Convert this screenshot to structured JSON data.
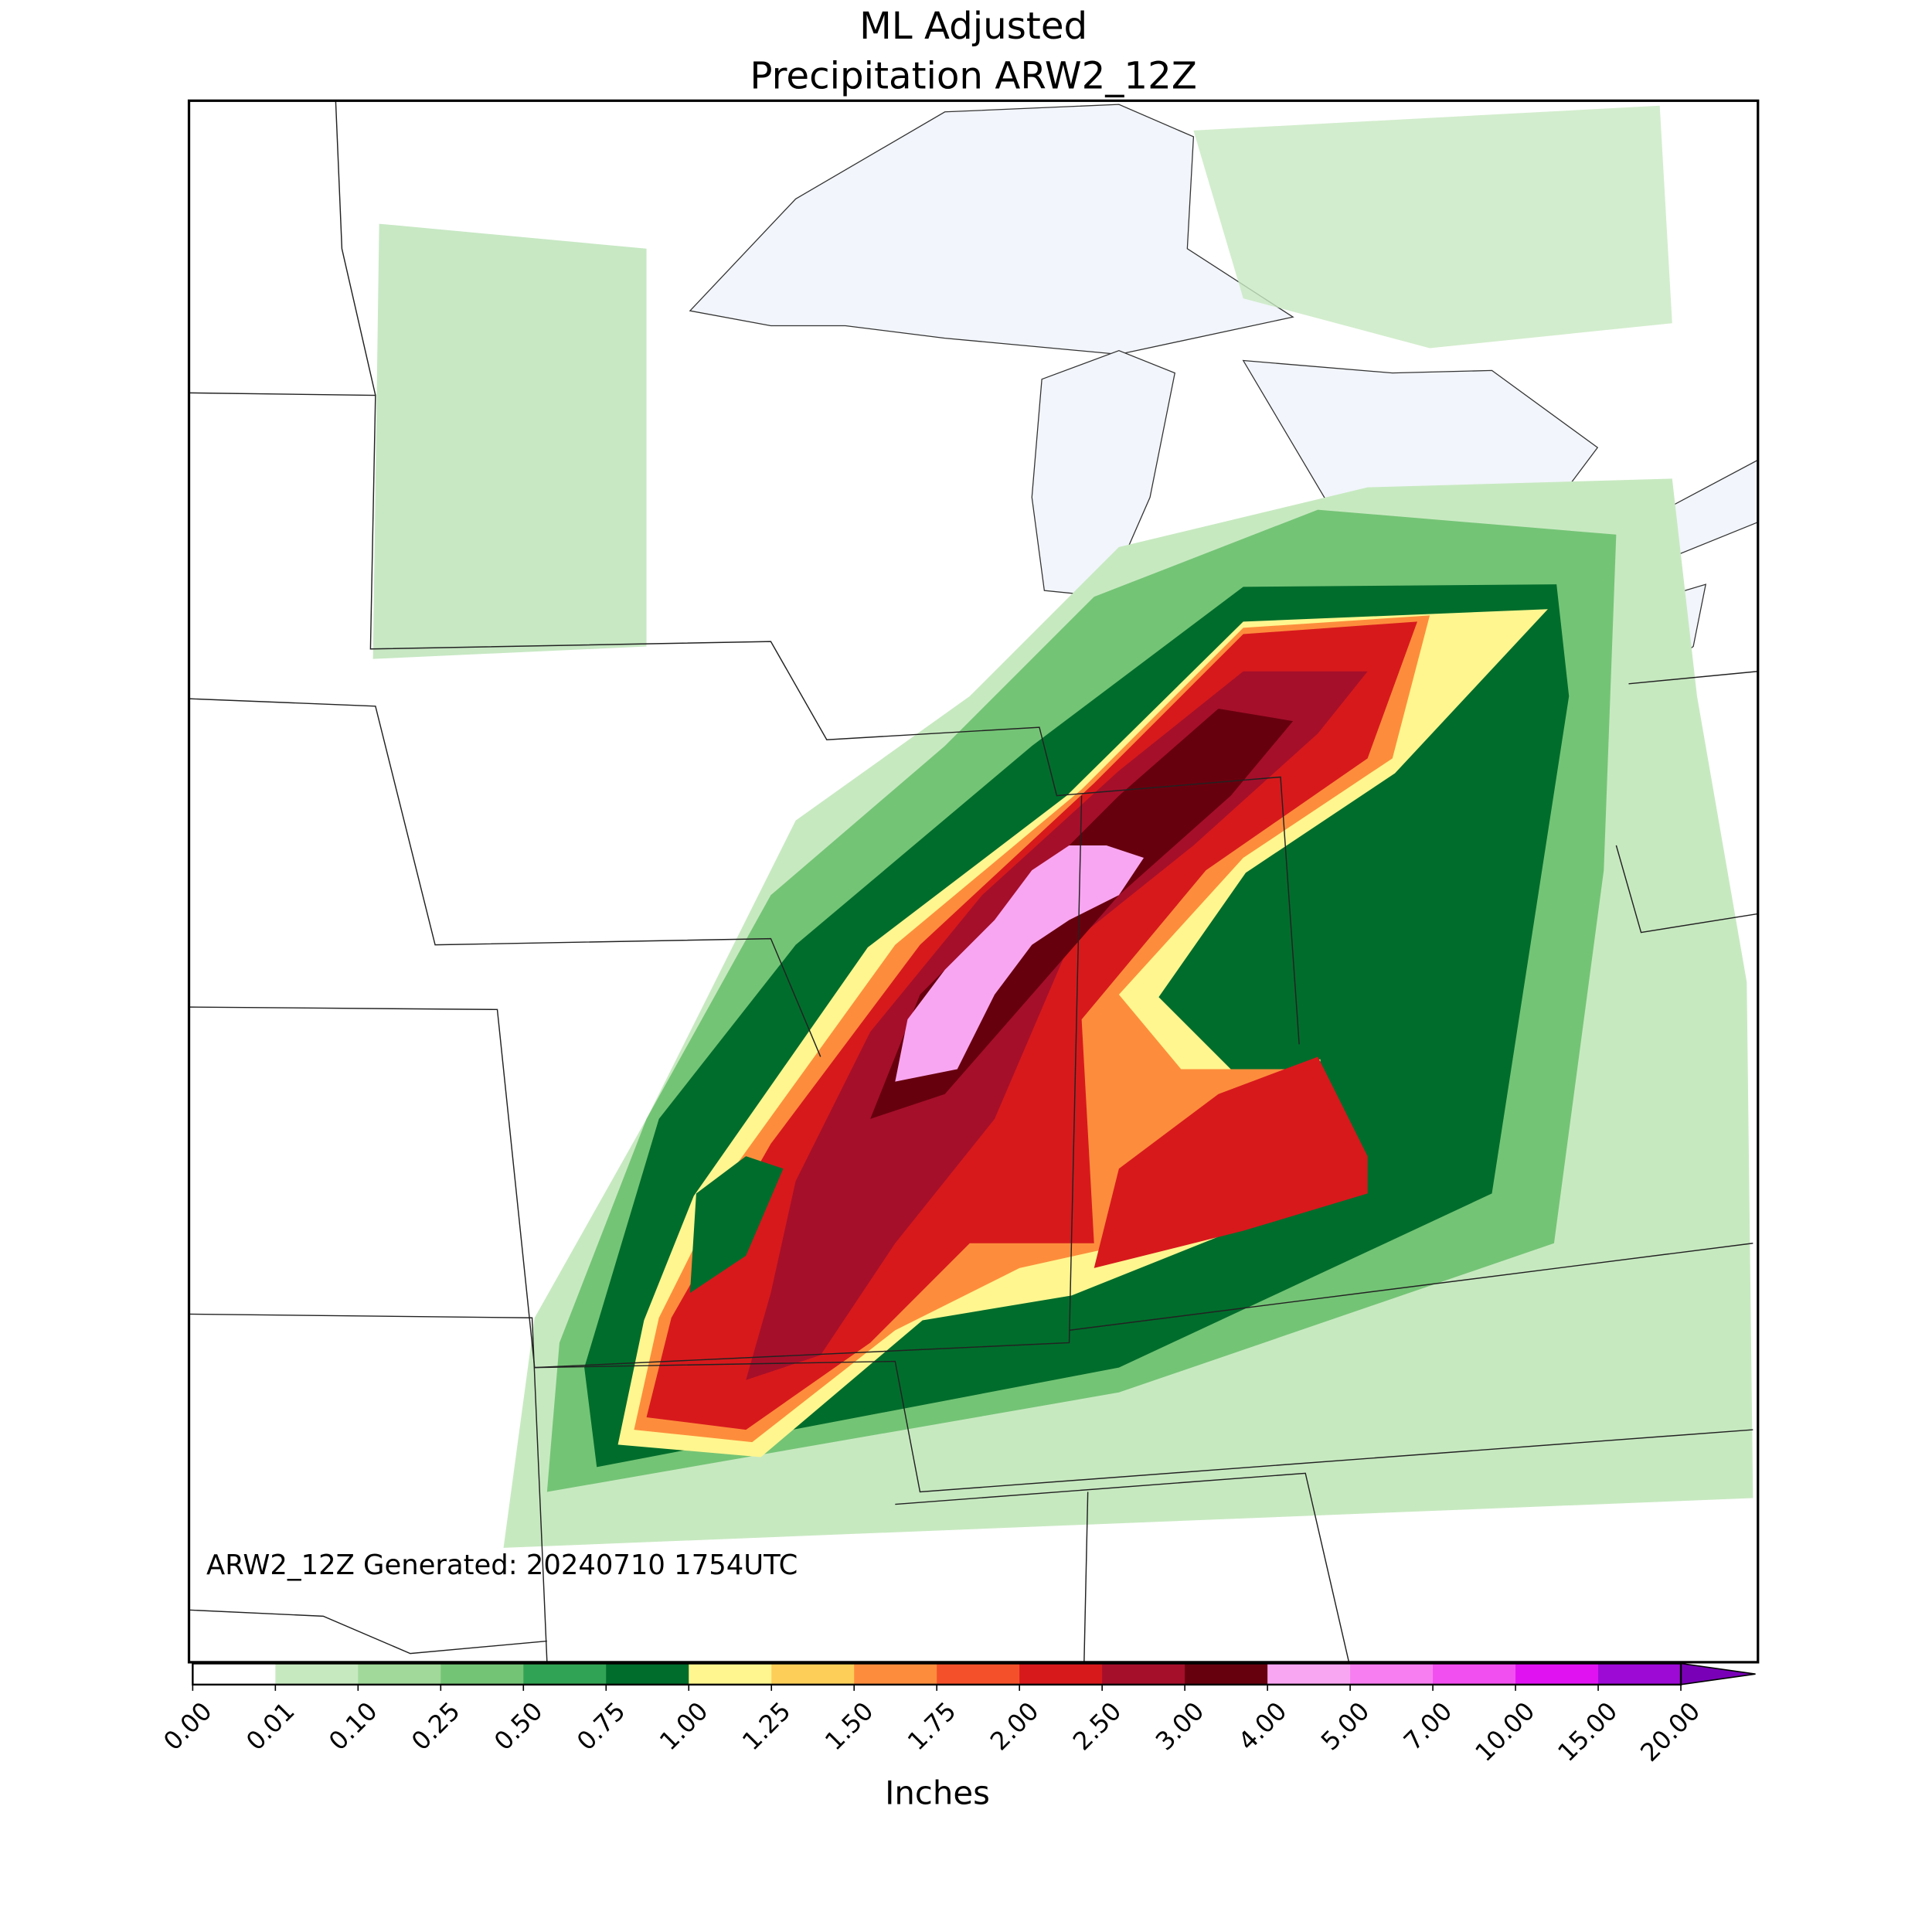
{
  "title": "ML Adjusted",
  "subtitle": "Precipitation ARW2_12Z",
  "annotation": "ARW2_12Z Generated: 20240710 1754UTC",
  "colorbar": {
    "label": "Inches",
    "ticks": [
      {
        "value": 0,
        "label": "0.00"
      },
      {
        "value": 0.01,
        "label": "0.01"
      },
      {
        "value": 0.1,
        "label": "0.10"
      },
      {
        "value": 0.25,
        "label": "0.25"
      },
      {
        "value": 0.5,
        "label": "0.50"
      },
      {
        "value": 0.75,
        "label": "0.75"
      },
      {
        "value": 1,
        "label": "1.00"
      },
      {
        "value": 1.25,
        "label": "1.25"
      },
      {
        "value": 1.5,
        "label": "1.50"
      },
      {
        "value": 1.75,
        "label": "1.75"
      },
      {
        "value": 2,
        "label": "2.00"
      },
      {
        "value": 2.5,
        "label": "2.50"
      },
      {
        "value": 3,
        "label": "3.00"
      },
      {
        "value": 4,
        "label": "4.00"
      },
      {
        "value": 5,
        "label": "5.00"
      },
      {
        "value": 7,
        "label": "7.00"
      },
      {
        "value": 10,
        "label": "10.00"
      },
      {
        "value": 15,
        "label": "15.00"
      },
      {
        "value": 20,
        "label": "20.00"
      }
    ],
    "colors": [
      "#ffffff",
      "#c7e9c0",
      "#a1d99b",
      "#74c476",
      "#31a354",
      "#006d2c",
      "#fff68f",
      "#fdcf58",
      "#fd8d3c",
      "#f4512a",
      "#d7191c",
      "#a50f2a",
      "#67000d",
      "#f9a6f2",
      "#f77ef0",
      "#f24ff0",
      "#e012f2",
      "#9d0ad6"
    ],
    "over_color": "#7a00b8"
  }
}
